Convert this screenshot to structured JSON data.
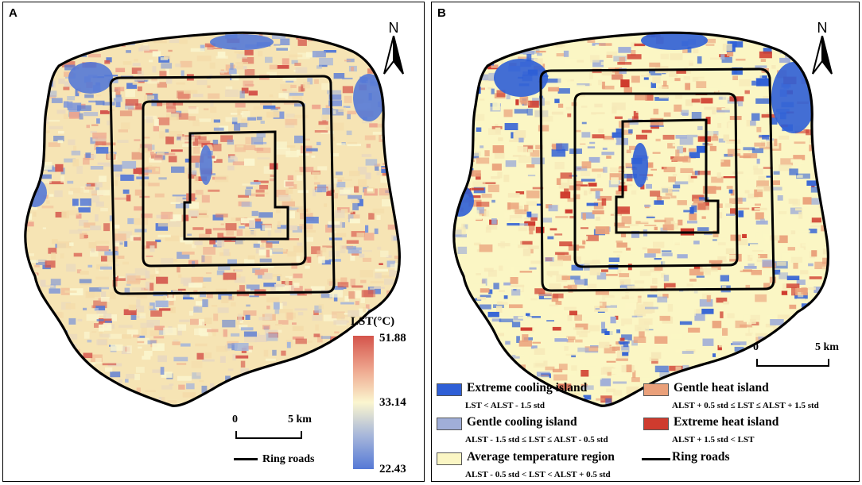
{
  "panels": [
    {
      "label": "A",
      "north_label": "N",
      "scale": {
        "zero": "0",
        "five": "5 km"
      },
      "ring_roads_label": "Ring roads",
      "colorbar": {
        "title": "LST(°C)",
        "max": "51.88",
        "mid": "33.14",
        "min": "22.43",
        "colors": [
          "#d4544b",
          "#eea58d",
          "#fbf6cf",
          "#a6b6da",
          "#5579d6"
        ]
      }
    },
    {
      "label": "B",
      "north_label": "N",
      "scale": {
        "zero": "0",
        "five": "5 km"
      },
      "legend": [
        {
          "name": "Extreme cooling island",
          "rule": "LST < ALST - 1.5 std",
          "color": "#2f5fd6"
        },
        {
          "name": "Gentle cooling island",
          "rule": "ALST - 1.5 std ≤ LST ≤ ALST - 0.5 std",
          "color": "#a0aed8"
        },
        {
          "name": "Average temperature region",
          "rule": "ALST - 0.5 std < LST < ALST + 0.5 std",
          "color": "#fbf6c4"
        },
        {
          "name": "Gentle heat island",
          "rule": "ALST + 0.5 std ≤ LST ≤ ALST + 1.5 std",
          "color": "#eaa07a"
        },
        {
          "name": "Extreme heat island",
          "rule": "ALST + 1.5 std < LST",
          "color": "#cf3b2e"
        }
      ],
      "ring_roads_label": "Ring roads"
    }
  ]
}
